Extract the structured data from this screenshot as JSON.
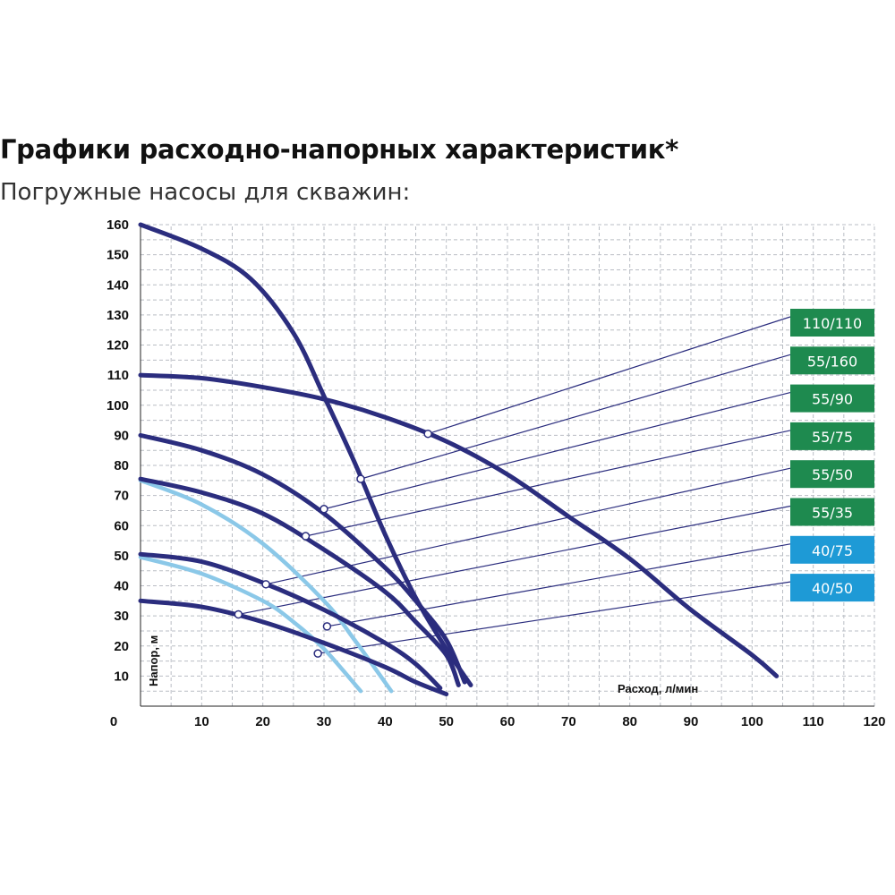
{
  "title": "Графики расходно-напорных характеристик*",
  "subtitle": "Погружные насосы для скважин:",
  "chart_data": {
    "type": "line",
    "xlabel": "Расход, л/мин",
    "ylabel": "Напор, м",
    "x_origin_label": "0",
    "xlim": [
      0,
      120
    ],
    "ylim": [
      0,
      160
    ],
    "x_ticks": [
      10,
      20,
      30,
      40,
      50,
      60,
      70,
      80,
      90,
      100,
      110,
      120
    ],
    "y_ticks": [
      10,
      20,
      30,
      40,
      50,
      60,
      70,
      80,
      90,
      100,
      110,
      120,
      130,
      140,
      150,
      160
    ],
    "grid": true,
    "legend_position": "right",
    "series": [
      {
        "name": "110/110",
        "color": "#2b2d7e",
        "label_color": "#1e8a4f",
        "points": [
          [
            0,
            110
          ],
          [
            10,
            109
          ],
          [
            20,
            106
          ],
          [
            30,
            102
          ],
          [
            40,
            96
          ],
          [
            50,
            88
          ],
          [
            60,
            77
          ],
          [
            70,
            63
          ],
          [
            80,
            49
          ],
          [
            90,
            32
          ],
          [
            100,
            17
          ],
          [
            104,
            10
          ]
        ],
        "marker": [
          47,
          90.5
        ]
      },
      {
        "name": "55/160",
        "color": "#2b2d7e",
        "label_color": "#1e8a4f",
        "points": [
          [
            0,
            160
          ],
          [
            10,
            152
          ],
          [
            18,
            142
          ],
          [
            25,
            124
          ],
          [
            30,
            103
          ],
          [
            35,
            81
          ],
          [
            40,
            57
          ],
          [
            45,
            36
          ],
          [
            50,
            19
          ],
          [
            54,
            7
          ]
        ],
        "marker": [
          36,
          75.5
        ]
      },
      {
        "name": "55/90",
        "color": "#2b2d7e",
        "label_color": "#1e8a4f",
        "points": [
          [
            0,
            90
          ],
          [
            10,
            85
          ],
          [
            20,
            77
          ],
          [
            30,
            64
          ],
          [
            40,
            46
          ],
          [
            45,
            35
          ],
          [
            50,
            22
          ],
          [
            53,
            8
          ]
        ],
        "marker": [
          30,
          65.5
        ]
      },
      {
        "name": "55/75",
        "color": "#2b2d7e",
        "label_color": "#1e8a4f",
        "points": [
          [
            0,
            75.5
          ],
          [
            10,
            71
          ],
          [
            20,
            64
          ],
          [
            30,
            52
          ],
          [
            40,
            38
          ],
          [
            45,
            28
          ],
          [
            50,
            17
          ],
          [
            52,
            7
          ]
        ],
        "marker": [
          27,
          56.5
        ]
      },
      {
        "name": "55/50",
        "color": "#2b2d7e",
        "label_color": "#1e8a4f",
        "points": [
          [
            0,
            50.5
          ],
          [
            10,
            48
          ],
          [
            20,
            41
          ],
          [
            30,
            32
          ],
          [
            40,
            21
          ],
          [
            45,
            14
          ],
          [
            49,
            6
          ]
        ],
        "marker": [
          20.5,
          40.5
        ]
      },
      {
        "name": "55/35",
        "color": "#2b2d7e",
        "label_color": "#1e8a4f",
        "points": [
          [
            0,
            35
          ],
          [
            10,
            33
          ],
          [
            20,
            28
          ],
          [
            30,
            21
          ],
          [
            40,
            13
          ],
          [
            45,
            8
          ],
          [
            50,
            4
          ]
        ],
        "marker": [
          16,
          30.5
        ]
      },
      {
        "name": "40/75",
        "color": "#8bc8e8",
        "label_color": "#1e9ad6",
        "points": [
          [
            0,
            75
          ],
          [
            10,
            67
          ],
          [
            20,
            54
          ],
          [
            30,
            35
          ],
          [
            35,
            22
          ],
          [
            41,
            5
          ]
        ],
        "marker": [
          30.5,
          26.5
        ]
      },
      {
        "name": "40/50",
        "color": "#8bc8e8",
        "label_color": "#1e9ad6",
        "points": [
          [
            0,
            49.5
          ],
          [
            10,
            44
          ],
          [
            20,
            35
          ],
          [
            25,
            28
          ],
          [
            30,
            19
          ],
          [
            36,
            5
          ]
        ],
        "marker": [
          29,
          17.5
        ]
      }
    ]
  }
}
